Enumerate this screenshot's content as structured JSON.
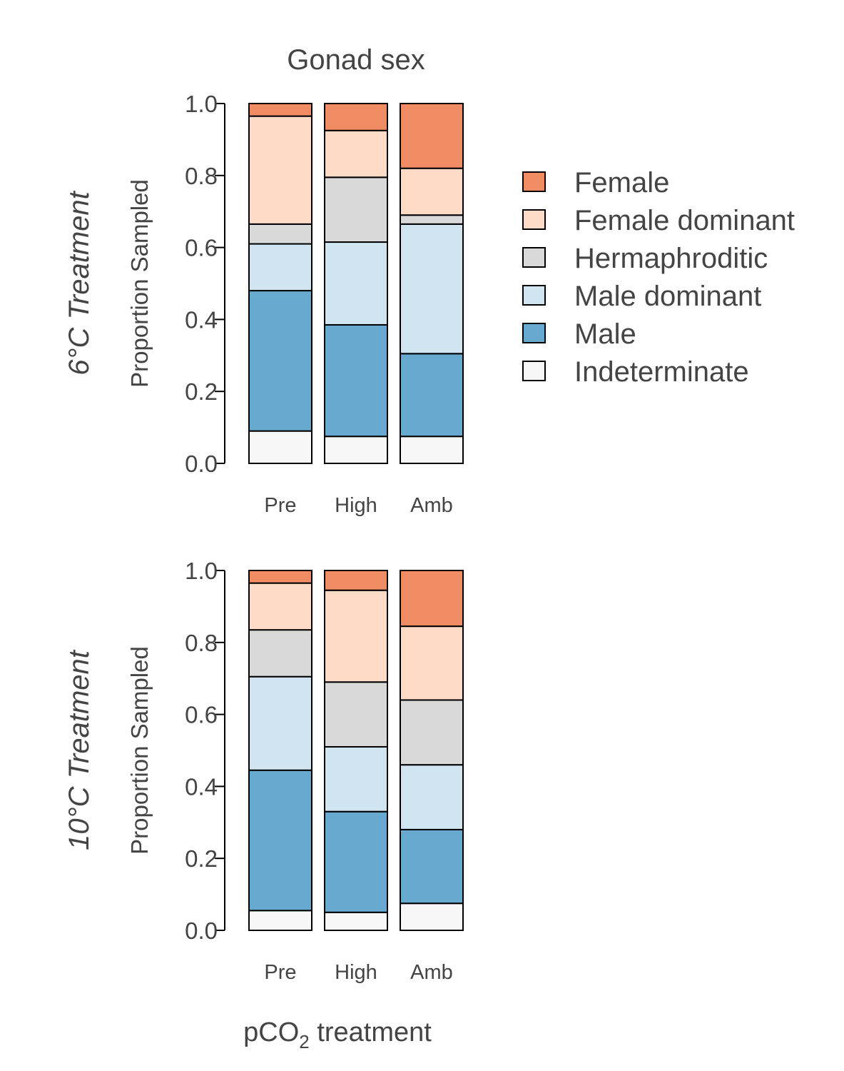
{
  "chart_data": {
    "type": "bar",
    "stacked": true,
    "title": "Gonad sex",
    "xlabel": "pCO2 treatment",
    "xlabel_main": "pCO",
    "xlabel_sub": "2",
    "xlabel_rest": " treatment",
    "ylabel": "Proportion Sampled",
    "ylim": [
      0,
      1
    ],
    "yticks": [
      "0.0",
      "0.2",
      "0.4",
      "0.6",
      "0.8",
      "1.0"
    ],
    "categories": [
      "Pre",
      "High",
      "Amb"
    ],
    "legend_position": "right",
    "colors": {
      "Female": "#f08c63",
      "Female dominant": "#fddbc7",
      "Hermaphroditic": "#d9d9d9",
      "Male dominant": "#d1e5f0",
      "Male": "#67a9cf",
      "Indeterminate": "#f7f7f7"
    },
    "legend": [
      "Female",
      "Female dominant",
      "Hermaphroditic",
      "Male dominant",
      "Male",
      "Indeterminate"
    ],
    "stack_order_bottom_to_top": [
      "Indeterminate",
      "Male",
      "Male dominant",
      "Hermaphroditic",
      "Female dominant",
      "Female"
    ],
    "panels": [
      {
        "row_label": "6°C Treatment",
        "series": [
          {
            "name": "Indeterminate",
            "values": [
              0.09,
              0.075,
              0.075
            ]
          },
          {
            "name": "Male",
            "values": [
              0.39,
              0.31,
              0.23
            ]
          },
          {
            "name": "Male dominant",
            "values": [
              0.13,
              0.23,
              0.36
            ]
          },
          {
            "name": "Hermaphroditic",
            "values": [
              0.055,
              0.18,
              0.025
            ]
          },
          {
            "name": "Female dominant",
            "values": [
              0.3,
              0.13,
              0.13
            ]
          },
          {
            "name": "Female",
            "values": [
              0.035,
              0.075,
              0.18
            ]
          }
        ]
      },
      {
        "row_label": "10°C Treatment",
        "series": [
          {
            "name": "Indeterminate",
            "values": [
              0.055,
              0.05,
              0.075
            ]
          },
          {
            "name": "Male",
            "values": [
              0.39,
              0.28,
              0.205
            ]
          },
          {
            "name": "Male dominant",
            "values": [
              0.26,
              0.18,
              0.18
            ]
          },
          {
            "name": "Hermaphroditic",
            "values": [
              0.13,
              0.18,
              0.18
            ]
          },
          {
            "name": "Female dominant",
            "values": [
              0.13,
              0.255,
              0.205
            ]
          },
          {
            "name": "Female",
            "values": [
              0.035,
              0.055,
              0.155
            ]
          }
        ]
      }
    ]
  }
}
